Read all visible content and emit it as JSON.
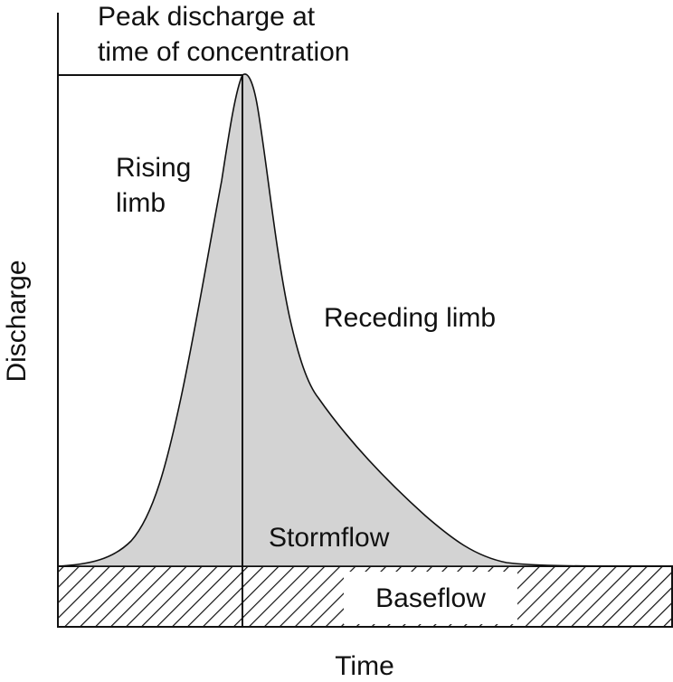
{
  "labels": {
    "peak_line1": "Peak discharge at",
    "peak_line2": "time of concentration",
    "rising_line1": "Rising",
    "rising_line2": "limb",
    "receding": "Receding limb",
    "stormflow": "Stormflow",
    "baseflow": "Baseflow",
    "y_axis": "Discharge",
    "x_axis": "Time"
  },
  "colors": {
    "stormflow_fill": "#d3d3d3",
    "stroke": "#111111",
    "background": "#ffffff"
  }
}
